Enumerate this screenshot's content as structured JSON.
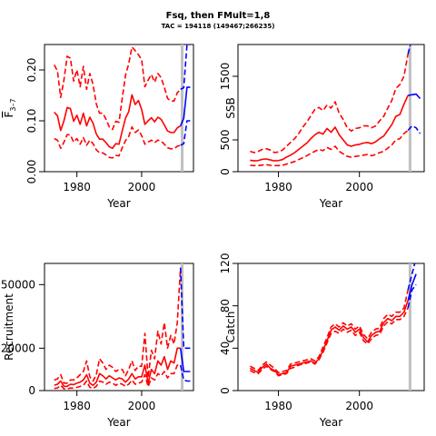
{
  "header": {
    "title": "Fsq, then FMult=1,8",
    "subtitle": "TAC = 194118 (149467;266235)"
  },
  "colors": {
    "history": "#ff0000",
    "projection": "#0000ff",
    "marker": "#c0c0c0",
    "axis": "#000000"
  },
  "chart_data": [
    {
      "id": "fbar",
      "type": "line",
      "xlabel": "Year",
      "ylabel": "F̅3–7",
      "ylabel_main": "F",
      "ylabel_sub": "3–7",
      "xlim": [
        1970,
        2016
      ],
      "ylim": [
        0,
        0.25
      ],
      "xticks": [
        1980,
        2000
      ],
      "yticks": [
        0.0,
        0.1,
        0.2
      ],
      "ytick_labels": [
        "0.00",
        "0.10",
        "0.20"
      ],
      "ytick_rotate": true,
      "marker_year": 2012.5,
      "history_x": [
        1973,
        1974,
        1975,
        1976,
        1977,
        1978,
        1979,
        1980,
        1981,
        1982,
        1983,
        1984,
        1985,
        1986,
        1987,
        1988,
        1989,
        1990,
        1991,
        1992,
        1993,
        1994,
        1995,
        1996,
        1997,
        1998,
        1999,
        2000,
        2001,
        2002,
        2003,
        2004,
        2005,
        2006,
        2007,
        2008,
        2009,
        2010,
        2011,
        2012
      ],
      "history_mid": [
        0.117,
        0.11,
        0.081,
        0.1,
        0.126,
        0.124,
        0.099,
        0.111,
        0.093,
        0.115,
        0.09,
        0.107,
        0.095,
        0.074,
        0.064,
        0.064,
        0.057,
        0.049,
        0.046,
        0.055,
        0.054,
        0.08,
        0.105,
        0.118,
        0.151,
        0.132,
        0.14,
        0.122,
        0.093,
        0.1,
        0.106,
        0.098,
        0.107,
        0.103,
        0.092,
        0.08,
        0.077,
        0.077,
        0.086,
        0.09
      ],
      "history_lo": [
        0.065,
        0.062,
        0.046,
        0.058,
        0.073,
        0.072,
        0.058,
        0.065,
        0.054,
        0.067,
        0.052,
        0.062,
        0.055,
        0.043,
        0.037,
        0.037,
        0.033,
        0.028,
        0.027,
        0.032,
        0.031,
        0.047,
        0.061,
        0.069,
        0.088,
        0.077,
        0.082,
        0.071,
        0.054,
        0.058,
        0.062,
        0.057,
        0.062,
        0.06,
        0.054,
        0.047,
        0.045,
        0.045,
        0.05,
        0.052
      ],
      "history_hi": [
        0.21,
        0.198,
        0.146,
        0.18,
        0.227,
        0.223,
        0.178,
        0.2,
        0.167,
        0.207,
        0.162,
        0.193,
        0.171,
        0.133,
        0.115,
        0.115,
        0.103,
        0.088,
        0.083,
        0.099,
        0.097,
        0.144,
        0.189,
        0.212,
        0.245,
        0.238,
        0.23,
        0.22,
        0.167,
        0.18,
        0.191,
        0.176,
        0.193,
        0.185,
        0.166,
        0.144,
        0.139,
        0.139,
        0.155,
        0.162
      ],
      "proj_x": [
        2012,
        2013,
        2014,
        2015
      ],
      "proj_mid": [
        0.09,
        0.105,
        0.166,
        0.166
      ],
      "proj_lo": [
        0.052,
        0.055,
        0.1,
        0.1
      ],
      "proj_hi": [
        0.162,
        0.165,
        0.25,
        0.25
      ]
    },
    {
      "id": "ssb",
      "type": "line",
      "xlabel": "Year",
      "ylabel": "SSB",
      "xlim": [
        1970,
        2016
      ],
      "ylim": [
        0,
        2000
      ],
      "xticks": [
        1980,
        2000
      ],
      "yticks": [
        0,
        500,
        1500
      ],
      "ytick_labels": [
        "0",
        "500",
        "1500"
      ],
      "ytick_rotate": true,
      "marker_year": 2012.5,
      "history_x": [
        1973,
        1974,
        1975,
        1976,
        1977,
        1978,
        1979,
        1980,
        1981,
        1982,
        1983,
        1984,
        1985,
        1986,
        1987,
        1988,
        1989,
        1990,
        1991,
        1992,
        1993,
        1994,
        1995,
        1996,
        1997,
        1998,
        1999,
        2000,
        2001,
        2002,
        2003,
        2004,
        2005,
        2006,
        2007,
        2008,
        2009,
        2010,
        2011,
        2012
      ],
      "history_mid": [
        180,
        170,
        175,
        195,
        200,
        185,
        170,
        175,
        190,
        230,
        260,
        300,
        350,
        400,
        450,
        520,
        580,
        620,
        590,
        680,
        620,
        700,
        580,
        500,
        420,
        400,
        420,
        430,
        450,
        460,
        440,
        470,
        520,
        560,
        650,
        740,
        870,
        900,
        1060,
        1200
      ],
      "history_lo": [
        100,
        95,
        95,
        105,
        110,
        100,
        95,
        95,
        100,
        120,
        140,
        160,
        190,
        220,
        250,
        290,
        320,
        350,
        330,
        380,
        350,
        400,
        320,
        280,
        240,
        230,
        240,
        250,
        260,
        270,
        250,
        270,
        300,
        320,
        370,
        420,
        500,
        520,
        600,
        650
      ],
      "history_hi": [
        320,
        300,
        320,
        350,
        360,
        340,
        300,
        310,
        340,
        400,
        460,
        520,
        600,
        700,
        780,
        880,
        980,
        1010,
        960,
        1050,
        1000,
        1100,
        920,
        820,
        690,
        640,
        680,
        690,
        720,
        720,
        690,
        720,
        800,
        870,
        1000,
        1120,
        1310,
        1370,
        1500,
        1850
      ],
      "proj_x": [
        2012,
        2013,
        2014,
        2015
      ],
      "proj_mid": [
        1200,
        1210,
        1220,
        1150
      ],
      "proj_lo": [
        650,
        720,
        690,
        600
      ],
      "proj_hi": [
        1850,
        2100,
        2100,
        2100
      ]
    },
    {
      "id": "recruitment",
      "type": "line",
      "xlabel": "Year",
      "ylabel": "Recruitment",
      "xlim": [
        1970,
        2016
      ],
      "ylim": [
        0,
        60000
      ],
      "xticks": [
        1980,
        2000
      ],
      "yticks": [
        0,
        20000,
        50000
      ],
      "ytick_labels": [
        "0",
        "20000",
        "50000"
      ],
      "ytick_rotate": false,
      "marker_year": 2012.5,
      "history_x": [
        1973,
        1974,
        1975,
        1976,
        1977,
        1978,
        1979,
        1980,
        1981,
        1982,
        1983,
        1984,
        1985,
        1986,
        1987,
        1988,
        1989,
        1990,
        1991,
        1992,
        1993,
        1994,
        1995,
        1996,
        1997,
        1998,
        1999,
        2000,
        2001,
        2002,
        2003,
        2004,
        2005,
        2006,
        2007,
        2008,
        2009,
        2010,
        2011,
        2012
      ],
      "history_mid": [
        2500,
        3000,
        4500,
        2000,
        2000,
        3000,
        2800,
        3500,
        4000,
        5000,
        7500,
        3500,
        2500,
        4000,
        8000,
        7000,
        5500,
        7000,
        6000,
        5000,
        6000,
        5500,
        4000,
        5500,
        8000,
        5500,
        6500,
        6500,
        12000,
        3500,
        10000,
        8000,
        14000,
        12000,
        16000,
        10000,
        14000,
        13000,
        20000,
        20000
      ],
      "history_lo": [
        1000,
        1200,
        2500,
        800,
        800,
        1200,
        1100,
        1500,
        2000,
        2500,
        4500,
        1500,
        1000,
        2000,
        4500,
        4000,
        3000,
        4000,
        3500,
        2500,
        3500,
        3000,
        2000,
        3000,
        5000,
        3000,
        3500,
        4000,
        7500,
        1800,
        6000,
        5000,
        8000,
        7000,
        9000,
        6000,
        8000,
        8000,
        12000,
        12000
      ],
      "history_hi": [
        5000,
        5500,
        7500,
        3500,
        3500,
        5000,
        5000,
        6000,
        7500,
        9000,
        14000,
        6500,
        4500,
        7500,
        15000,
        13000,
        10000,
        12000,
        11000,
        9000,
        10000,
        10000,
        7000,
        10000,
        14000,
        9500,
        11500,
        11500,
        27000,
        6000,
        19000,
        15000,
        28000,
        22000,
        32000,
        20000,
        26000,
        22000,
        32000,
        58000
      ],
      "proj_x": [
        2012,
        2013,
        2014,
        2015
      ],
      "proj_mid": [
        20000,
        9000,
        9000,
        9000
      ],
      "proj_lo": [
        12000,
        5000,
        4500,
        4500
      ],
      "proj_hi": [
        58000,
        20000,
        20000,
        20000
      ]
    },
    {
      "id": "catch",
      "type": "line",
      "xlabel": "Year",
      "ylabel": "Catch",
      "xlim": [
        1970,
        2016
      ],
      "ylim": [
        0,
        120
      ],
      "xticks": [
        1980,
        2000
      ],
      "yticks": [
        0,
        40,
        80,
        120
      ],
      "ytick_labels": [
        "0",
        "40",
        "80",
        "120"
      ],
      "ytick_rotate": true,
      "marker_year": 2012.5,
      "history_x": [
        1973,
        1974,
        1975,
        1976,
        1977,
        1978,
        1979,
        1980,
        1981,
        1982,
        1983,
        1984,
        1985,
        1986,
        1987,
        1988,
        1989,
        1990,
        1991,
        1992,
        1993,
        1994,
        1995,
        1996,
        1997,
        1998,
        1999,
        2000,
        2001,
        2002,
        2003,
        2004,
        2005,
        2006,
        2007,
        2008,
        2009,
        2010,
        2011,
        2012
      ],
      "history_mid": [
        21,
        19,
        17,
        22,
        25,
        21,
        19,
        15,
        16,
        17,
        23,
        24,
        25,
        26,
        27,
        28,
        26,
        30,
        38,
        47,
        57,
        60,
        57,
        61,
        58,
        60,
        55,
        58,
        50,
        46,
        52,
        55,
        56,
        64,
        68,
        66,
        70,
        70,
        74,
        85
      ],
      "history_lo": [
        19,
        17,
        16,
        20,
        23,
        20,
        18,
        14,
        15,
        16,
        21,
        22,
        24,
        25,
        26,
        27,
        25,
        29,
        36,
        45,
        54,
        56,
        54,
        58,
        55,
        57,
        52,
        55,
        47,
        44,
        49,
        52,
        53,
        61,
        65,
        63,
        67,
        67,
        70,
        78
      ],
      "history_hi": [
        23,
        21,
        19,
        24,
        27,
        24,
        21,
        17,
        18,
        19,
        25,
        26,
        27,
        28,
        29,
        30,
        28,
        32,
        41,
        50,
        60,
        63,
        60,
        64,
        61,
        63,
        58,
        61,
        53,
        49,
        55,
        58,
        59,
        68,
        72,
        70,
        74,
        74,
        78,
        95
      ],
      "proj_x": [
        2012,
        2013,
        2014
      ],
      "proj_mid": [
        85,
        100,
        110
      ],
      "proj_lo": [
        78,
        95,
        100
      ],
      "proj_hi": [
        95,
        110,
        125
      ]
    }
  ]
}
